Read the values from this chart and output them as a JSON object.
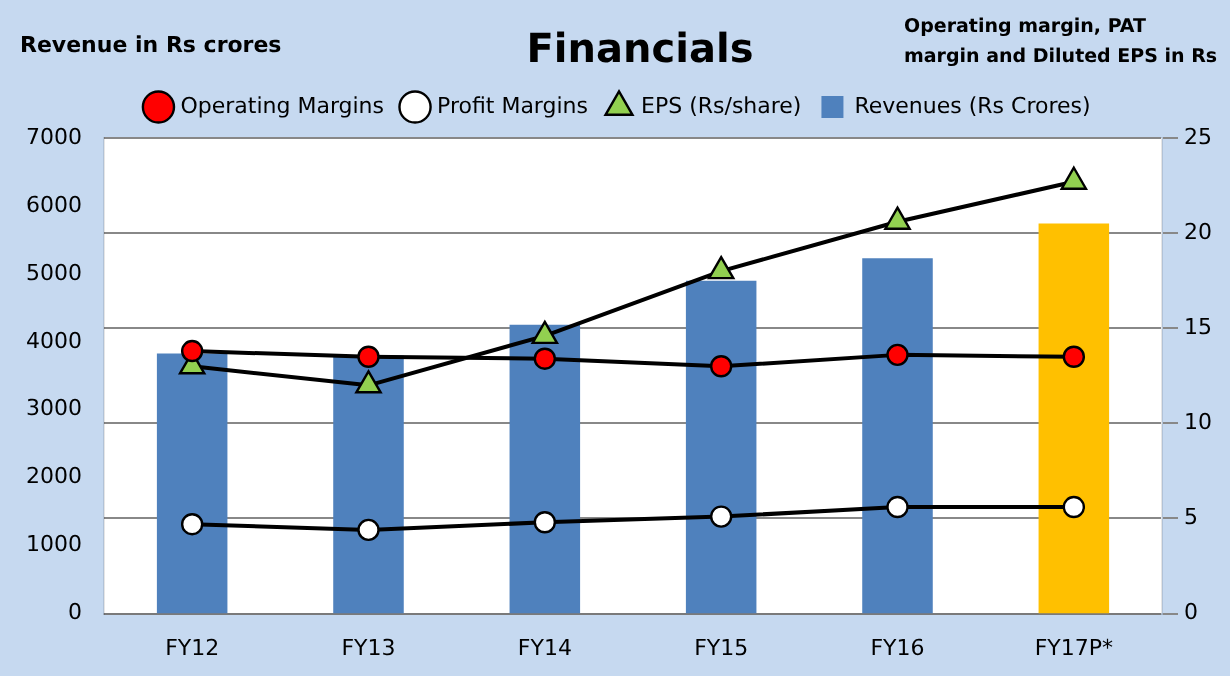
{
  "chart_data": {
    "type": "bar",
    "title": "Financials",
    "ylabel": "Revenue in Rs crores",
    "y2label": "Operating margin, PAT margin and Diluted EPS in Rs",
    "categories": [
      "FY12",
      "FY13",
      "FY14",
      "FY15",
      "FY16",
      "FY17P*"
    ],
    "series": [
      {
        "name": "Revenues (Rs Crores)",
        "colors": [
          "#4f81bd",
          "#4f81bd",
          "#4f81bd",
          "#4f81bd",
          "#4f81bd",
          "#ffc000"
        ],
        "values": [
          3830,
          3800,
          4250,
          4900,
          5230,
          5740
        ]
      },
      {
        "name": "Operating Margins",
        "type": "line",
        "axis": "y2",
        "color": "#ff0000",
        "marker": "circle",
        "values": [
          13.8,
          13.5,
          13.4,
          13.0,
          13.6,
          13.5
        ]
      },
      {
        "name": "Profit Margins",
        "type": "line",
        "axis": "y2",
        "color": "#ffffff",
        "marker": "circle",
        "values": [
          4.7,
          4.4,
          4.8,
          5.1,
          5.6,
          5.6
        ]
      },
      {
        "name": "EPS (Rs/share)",
        "type": "line",
        "axis": "y2",
        "color": "#92d050",
        "marker": "triangle",
        "values": [
          13.0,
          12.0,
          14.6,
          18.0,
          20.6,
          22.7
        ]
      }
    ],
    "ylim": [
      0,
      7000
    ],
    "yticks": [
      0,
      1000,
      2000,
      3000,
      4000,
      5000,
      6000,
      7000
    ],
    "y2lim": [
      0,
      25
    ],
    "y2ticks": [
      0,
      5,
      10,
      15,
      20,
      25
    ],
    "grid": "y",
    "legend": "top"
  }
}
